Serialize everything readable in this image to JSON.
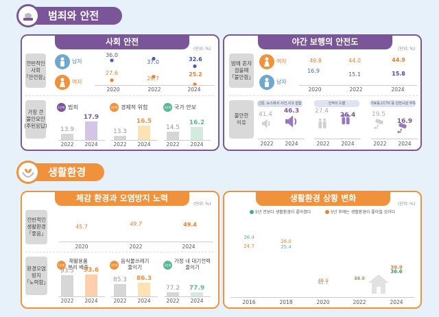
{
  "sections": {
    "crime": {
      "title": "범죄와 안전",
      "color": "#7a5699"
    },
    "living": {
      "title": "생활환경",
      "color": "#f0913b"
    }
  },
  "unit_label": "(단위: %)",
  "social_safety": {
    "title": "사회 안전",
    "row1_label": "전반적인\n사회\n「안전함」",
    "male_label": "남자",
    "female_label": "여자",
    "years": [
      "2020",
      "2022",
      "2024"
    ],
    "male_values": [
      "36.0",
      "37.0",
      "32.6"
    ],
    "female_values": [
      "27.6",
      "29.7",
      "25.2"
    ],
    "row2_label": "가장 큰\n불안요인\n(주된응답)",
    "ranks": [
      {
        "badge": "1순위",
        "label": "범죄",
        "v2022": "13.9",
        "v2024": "17.9",
        "color": "#7a5699",
        "bar_color": "#d5c5e4"
      },
      {
        "badge": "2순위",
        "label": "경제적 위험",
        "v2022": "13.3",
        "v2024": "16.5",
        "color": "#f0913b",
        "bar_color": "#fde3b4"
      },
      {
        "badge": "3순위",
        "label": "국가 안보",
        "v2022": "14.5",
        "v2024": "16.2",
        "color": "#5bb894",
        "bar_color": "#d3ebdf"
      }
    ],
    "bar_years": [
      "2022",
      "2024"
    ]
  },
  "night_walk": {
    "title": "야간 보행의 안전도",
    "row1_label": "밤에 혼자\n걸을때\n「불안함」",
    "female_label": "여자",
    "male_label": "남자",
    "years": [
      "2020",
      "2022",
      "2024"
    ],
    "female_values": [
      "49.8",
      "44.0",
      "44.9"
    ],
    "male_values": [
      "16.9",
      "15.1",
      "15.8"
    ],
    "row2_label": "불안한\n이유",
    "reasons": [
      {
        "label": "신문, 뉴스에서 사건,사고 접함",
        "v2022": "41.4",
        "v2024": "46.3",
        "icon": "speaker-icon"
      },
      {
        "label": "인적이 드물",
        "v2022": "27.4",
        "v2024": "26.4",
        "icon": "people-icon"
      },
      {
        "label": "가로등,CCTV 등 안전시설 부족",
        "v2022": "19.5",
        "v2024": "16.9",
        "icon": "cctv-icon"
      }
    ],
    "bar_years": [
      "2022",
      "2024"
    ]
  },
  "environment": {
    "title": "체감 환경과 오염방지 노력",
    "row1_label": "전반적인\n생활환경\n「좋음」",
    "years": [
      "2020",
      "2022",
      "2024"
    ],
    "values": [
      "45.7",
      "49.7",
      "49.4"
    ],
    "row2_label": "환경오염\n방지\n「노력함」",
    "ranks": [
      {
        "badge": "1순위",
        "label": "재활용품\n분리 배출",
        "v2022": "93.3",
        "v2024": "93.6",
        "color": "#f0913b",
        "bar_color": "#fdd0ad"
      },
      {
        "badge": "2순위",
        "label": "음식물쓰레기\n줄이기",
        "v2022": "85.3",
        "v2024": "86.3",
        "color": "#f0913b",
        "bar_color": "#fde3b4"
      },
      {
        "badge": "3순위",
        "label": "가정 내 대기전력\n줄이기",
        "v2022": "77.2",
        "v2024": "77.9",
        "color": "#5bb894",
        "bar_color": "#d3ebdf"
      }
    ],
    "bar_years": [
      "2022",
      "2024"
    ]
  },
  "living_change": {
    "title": "생활환경 상황 변화",
    "legend": [
      {
        "label": "5년 전보다 생활환경이 좋아졌다",
        "color": "#3fae8c"
      },
      {
        "label": "5년 후에는 생활환경이 좋아질 것이다",
        "color": "#f07f2a"
      }
    ],
    "years": [
      "2016",
      "2018",
      "2020",
      "2022",
      "2024"
    ],
    "past_values": [
      "26.4",
      "25.4",
      "41.7",
      "39.8",
      "36.6"
    ],
    "future_values": [
      "24.7",
      "28.0",
      "46.0",
      "44.9",
      "39.9"
    ]
  },
  "chart_data": [
    {
      "type": "line",
      "title": "사회 안전 - 전반적인 사회 안전함",
      "x": [
        "2020",
        "2022",
        "2024"
      ],
      "series": [
        {
          "name": "남자",
          "values": [
            36.0,
            37.0,
            32.6
          ]
        },
        {
          "name": "여자",
          "values": [
            27.6,
            29.7,
            25.2
          ]
        }
      ],
      "ylabel": "%"
    },
    {
      "type": "bar",
      "title": "가장 큰 불안요인",
      "categories": [
        "범죄",
        "경제적 위험",
        "국가 안보"
      ],
      "series": [
        {
          "name": "2022",
          "values": [
            13.9,
            13.3,
            14.5
          ]
        },
        {
          "name": "2024",
          "values": [
            17.9,
            16.5,
            16.2
          ]
        }
      ]
    },
    {
      "type": "line",
      "title": "야간 보행의 안전도 - 불안함",
      "x": [
        "2020",
        "2022",
        "2024"
      ],
      "series": [
        {
          "name": "여자",
          "values": [
            49.8,
            44.0,
            44.9
          ]
        },
        {
          "name": "남자",
          "values": [
            16.9,
            15.1,
            15.8
          ]
        }
      ]
    },
    {
      "type": "bar",
      "title": "불안한 이유",
      "categories": [
        "신문, 뉴스에서 사건,사고 접함",
        "인적이 드물",
        "가로등,CCTV 등 안전시설 부족"
      ],
      "series": [
        {
          "name": "2022",
          "values": [
            41.4,
            27.4,
            19.5
          ]
        },
        {
          "name": "2024",
          "values": [
            46.3,
            26.4,
            16.9
          ]
        }
      ]
    },
    {
      "type": "line",
      "title": "전반적인 생활환경 좋음",
      "x": [
        "2020",
        "2022",
        "2024"
      ],
      "series": [
        {
          "name": "좋음",
          "values": [
            45.7,
            49.7,
            49.4
          ]
        }
      ]
    },
    {
      "type": "bar",
      "title": "환경오염 방지 노력함",
      "categories": [
        "재활용품 분리 배출",
        "음식물쓰레기 줄이기",
        "가정 내 대기전력 줄이기"
      ],
      "series": [
        {
          "name": "2022",
          "values": [
            93.3,
            85.3,
            77.2
          ]
        },
        {
          "name": "2024",
          "values": [
            93.6,
            86.3,
            77.9
          ]
        }
      ]
    },
    {
      "type": "line",
      "title": "생활환경 상황 변화",
      "x": [
        "2016",
        "2018",
        "2020",
        "2022",
        "2024"
      ],
      "series": [
        {
          "name": "5년 전보다 생활환경이 좋아졌다",
          "values": [
            26.4,
            25.4,
            41.7,
            39.8,
            36.6
          ]
        },
        {
          "name": "5년 후에는 생활환경이 좋아질 것이다",
          "values": [
            24.7,
            28.0,
            46.0,
            44.9,
            39.9
          ]
        }
      ],
      "legend": "top"
    }
  ]
}
